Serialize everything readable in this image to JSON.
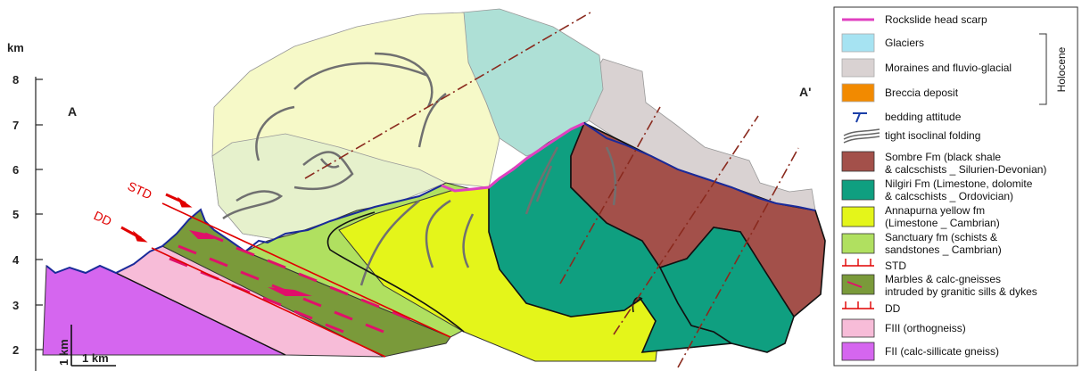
{
  "axis": {
    "unit": "km",
    "ticks": [
      "8",
      "7",
      "6",
      "5",
      "4",
      "3",
      "2"
    ]
  },
  "section_ends": {
    "left": "A",
    "right": "A'"
  },
  "fault_labels": {
    "std": "STD",
    "dd": "DD"
  },
  "scale_bar": {
    "vertical": "1 km",
    "horizontal": "1 km"
  },
  "legend": {
    "group_label": "Holocene",
    "items": [
      {
        "id": "head-scarp",
        "label": "Rockslide head scarp",
        "color": "#e040c0"
      },
      {
        "id": "glaciers",
        "label": "Glaciers",
        "color": "#a6e3f2"
      },
      {
        "id": "moraines",
        "label": "Moraines and fluvio-glacial",
        "color": "#d9d2d2"
      },
      {
        "id": "breccia",
        "label": "Breccia deposit",
        "color": "#f28a00"
      },
      {
        "id": "bedding",
        "label": "bedding attitude",
        "color": "#1a3fa8"
      },
      {
        "id": "folding",
        "label": "tight isoclinal folding",
        "color": "#666666"
      },
      {
        "id": "sombre",
        "label_lines": [
          "Sombre Fm (black shale",
          "& calcschists _ Silurien-Devonian)"
        ],
        "color": "#a3504a"
      },
      {
        "id": "nilgiri",
        "label_lines": [
          "Nilgiri Fm (Limestone, dolomite",
          "& calcschists _ Ordovician)"
        ],
        "color": "#0f9f80"
      },
      {
        "id": "annapurna",
        "label_lines": [
          "Annapurna yellow fm",
          "(Limestone _ Cambrian)"
        ],
        "color": "#e4f51a"
      },
      {
        "id": "sanctuary",
        "label_lines": [
          "Sanctuary fm (schists &",
          "sandstones _ Cambrian)"
        ],
        "color": "#b0e060"
      },
      {
        "id": "std",
        "label": "STD",
        "color": "#e00000"
      },
      {
        "id": "marbles",
        "label_lines": [
          "Marbles & calc-gneisses",
          "intruded by granitic sills & dykes"
        ],
        "color": "#7a9a3a"
      },
      {
        "id": "dd",
        "label": "DD",
        "color": "#e00000"
      },
      {
        "id": "fiii",
        "label": "FIII (orthogneiss)",
        "color": "#f7bcd8"
      },
      {
        "id": "fii",
        "label": "FII (calc-sillicate gneiss)",
        "color": "#d566ef"
      }
    ]
  }
}
